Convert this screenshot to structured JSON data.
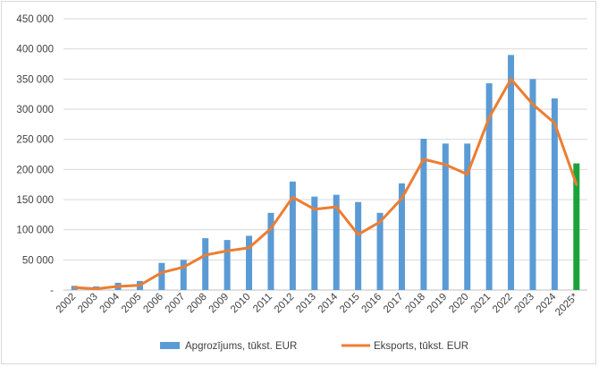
{
  "chart_data": {
    "type": "bar",
    "title": "",
    "xlabel": "",
    "ylabel": "",
    "ylim": [
      0,
      450000
    ],
    "y_ticks": [
      0,
      50000,
      100000,
      150000,
      200000,
      250000,
      300000,
      350000,
      400000,
      450000
    ],
    "y_tick_labels": [
      "-",
      "50 000",
      "100 000",
      "150 000",
      "200 000",
      "250 000",
      "300 000",
      "350 000",
      "400 000",
      "450 000"
    ],
    "grid": true,
    "legend_position": "bottom",
    "categories": [
      "2002",
      "2003",
      "2004",
      "2005",
      "2006",
      "2007",
      "2008",
      "2009",
      "2010",
      "2011",
      "2012",
      "2013",
      "2014",
      "2015",
      "2016",
      "2017",
      "2018",
      "2019",
      "2020",
      "2021",
      "2022",
      "2023",
      "2024",
      "2025*"
    ],
    "series": [
      {
        "name": "Apgrozījums, tūkst. EUR",
        "type": "bar",
        "color": "#5b9bd5",
        "highlight_last_color": "#1aa33a",
        "values": [
          7000,
          6000,
          12000,
          15000,
          45000,
          50000,
          86000,
          83000,
          90000,
          128000,
          180000,
          155000,
          158000,
          146000,
          128000,
          177000,
          251000,
          243000,
          243000,
          343000,
          390000,
          350000,
          318000,
          210000
        ]
      },
      {
        "name": "Eksports, tūkst. EUR",
        "type": "line",
        "color": "#ed7d31",
        "values": [
          4000,
          2000,
          6000,
          8000,
          29000,
          38000,
          58000,
          65000,
          70000,
          102000,
          154000,
          134000,
          138000,
          92000,
          113000,
          152000,
          217000,
          208000,
          192000,
          286000,
          350000,
          308000,
          277000,
          175000
        ]
      }
    ]
  }
}
